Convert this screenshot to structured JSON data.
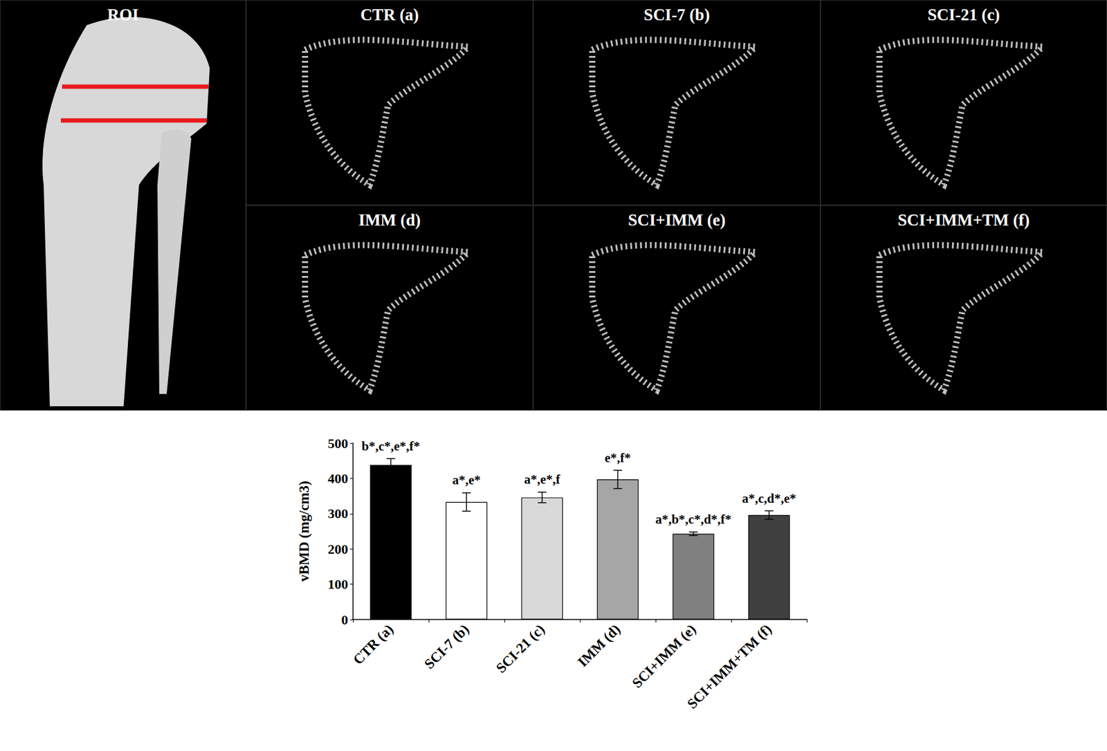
{
  "panels": [
    {
      "title": "ROI"
    },
    {
      "title": "CTR (a)"
    },
    {
      "title": "SCI-7 (b)"
    },
    {
      "title": "SCI-21 (c)"
    },
    {
      "title": "IMM (d)"
    },
    {
      "title": "SCI+IMM (e)"
    },
    {
      "title": "SCI+IMM+TM (f)"
    }
  ],
  "chart_data": {
    "type": "bar",
    "y_label": "vBMD (mg/cm3)",
    "categories": [
      "CTR (a)",
      "SCI-7 (b)",
      "SCI-21 (c)",
      "IMM (d)",
      "SCI+IMM (e)",
      "SCI+IMM+TM (f)"
    ],
    "values": [
      438,
      333,
      346,
      397,
      243,
      296
    ],
    "errors": [
      18,
      26,
      15,
      26,
      5,
      12
    ],
    "annotations": [
      "b*,c*,e*,f*",
      "a*,e*",
      "a*,e*,f",
      "e*,f*",
      "a*,b*,c*,d*,f*",
      "a*,c,d*,e*"
    ],
    "colors": [
      "#000000",
      "#ffffff",
      "#d9d9d9",
      "#a6a6a6",
      "#808080",
      "#404040"
    ],
    "ylim": [
      0,
      500
    ],
    "yticks": [
      0,
      100,
      200,
      300,
      400,
      500
    ],
    "grid": false
  }
}
